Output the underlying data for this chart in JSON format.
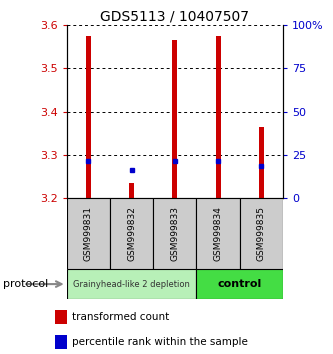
{
  "title": "GDS5113 / 10407507",
  "samples": [
    "GSM999831",
    "GSM999832",
    "GSM999833",
    "GSM999834",
    "GSM999835"
  ],
  "groups": [
    "depletion",
    "depletion",
    "depletion",
    "control",
    "control"
  ],
  "group_labels": {
    "depletion": "Grainyhead-like 2 depletion",
    "control": "control"
  },
  "group_colors": {
    "depletion": "#b8f0b8",
    "control": "#44dd44"
  },
  "bar_bottom": [
    3.2,
    3.2,
    3.2,
    3.2,
    3.2
  ],
  "bar_top": [
    3.575,
    3.235,
    3.565,
    3.575,
    3.365
  ],
  "blue_dot_y": [
    3.285,
    3.265,
    3.285,
    3.285,
    3.275
  ],
  "ylim": [
    3.2,
    3.6
  ],
  "yticks_left": [
    3.2,
    3.3,
    3.4,
    3.5,
    3.6
  ],
  "yticks_right": [
    0,
    25,
    50,
    75,
    100
  ],
  "left_tick_color": "#cc0000",
  "right_tick_color": "#0000cc",
  "bar_color": "#cc0000",
  "dot_color": "#0000cc",
  "legend_red_label": "transformed count",
  "legend_blue_label": "percentile rank within the sample",
  "protocol_label": "protocol",
  "background_color": "#ffffff",
  "sample_box_color": "#cccccc",
  "bar_width": 0.12
}
